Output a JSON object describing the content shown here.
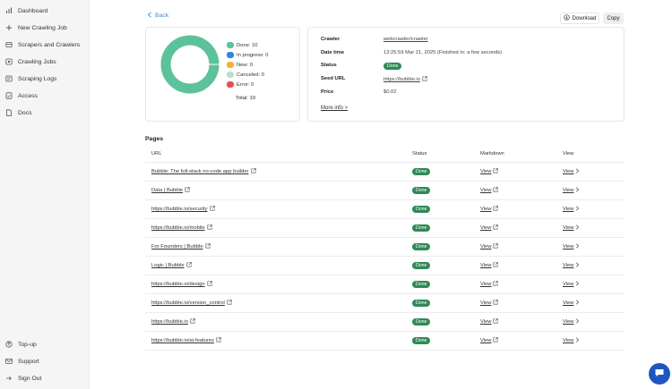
{
  "sidebar": {
    "items": [
      {
        "label": "Dashboard",
        "icon": "bar-chart-icon"
      },
      {
        "label": "New Crawling Job",
        "icon": "plus-icon"
      },
      {
        "label": "Scrapers and Crawlers",
        "icon": "scraper-icon"
      },
      {
        "label": "Crawling Jobs",
        "icon": "jobs-icon"
      },
      {
        "label": "Scraping Logs",
        "icon": "logs-icon"
      },
      {
        "label": "Access",
        "icon": "access-icon"
      },
      {
        "label": "Docs",
        "icon": "docs-icon"
      }
    ],
    "bottom_items": [
      {
        "label": "Top-up",
        "icon": "topup-icon"
      },
      {
        "label": "Support",
        "icon": "mail-icon"
      },
      {
        "label": "Sign Out",
        "icon": "sign-out-icon"
      }
    ]
  },
  "header": {
    "back_label": "Back",
    "download_label": "Download",
    "copy_label": "Copy"
  },
  "chart_data": {
    "type": "pie",
    "categories": [
      "Done",
      "In progress",
      "New",
      "Canceled",
      "Error"
    ],
    "values": [
      10,
      0,
      0,
      0,
      0
    ],
    "colors": [
      "#5cc29c",
      "#2e86de",
      "#f2b233",
      "#b9e3c8",
      "#e05252"
    ],
    "legend": [
      "Done: 10",
      "In progress: 0",
      "New: 0",
      "Canceled: 0",
      "Error: 0"
    ],
    "total_label": "Total: 10"
  },
  "info": {
    "crawler_label": "Crawler",
    "crawler_value": "webcrawler/crawler",
    "datetime_label": "Date time",
    "datetime_value": "13:25:59 Mar 21, 2025 (Finished in: a few seconds)",
    "status_label": "Status",
    "status_value": "Done",
    "seed_label": "Seed URL",
    "seed_value": "https://bubble.io",
    "price_label": "Price",
    "price_value": "$0.02",
    "more_label": "More info >"
  },
  "pages": {
    "title": "Pages",
    "columns": [
      "URL",
      "Status",
      "Markdown",
      "View"
    ],
    "rows": [
      {
        "url": "Bubble: The full-stack no-code app builder",
        "status": "Done",
        "markdown": "View",
        "view": "View"
      },
      {
        "url": "Data | Bubble",
        "status": "Done",
        "markdown": "View",
        "view": "View"
      },
      {
        "url": "https://bubble.io/security",
        "status": "Done",
        "markdown": "View",
        "view": "View"
      },
      {
        "url": "https://bubble.io/mobile",
        "status": "Done",
        "markdown": "View",
        "view": "View"
      },
      {
        "url": "For Founders | Bubble",
        "status": "Done",
        "markdown": "View",
        "view": "View"
      },
      {
        "url": "Logic | Bubble",
        "status": "Done",
        "markdown": "View",
        "view": "View"
      },
      {
        "url": "https://bubble.io/design",
        "status": "Done",
        "markdown": "View",
        "view": "View"
      },
      {
        "url": "https://bubble.io/version_control",
        "status": "Done",
        "markdown": "View",
        "view": "View"
      },
      {
        "url": "https://bubble.io",
        "status": "Done",
        "markdown": "View",
        "view": "View"
      },
      {
        "url": "https://bubble.io/ai-features",
        "status": "Done",
        "markdown": "View",
        "view": "View"
      }
    ]
  },
  "colors": {
    "accent": "#3a8bd6",
    "badge": "#2f8a55",
    "chat": "#1f56c2"
  }
}
